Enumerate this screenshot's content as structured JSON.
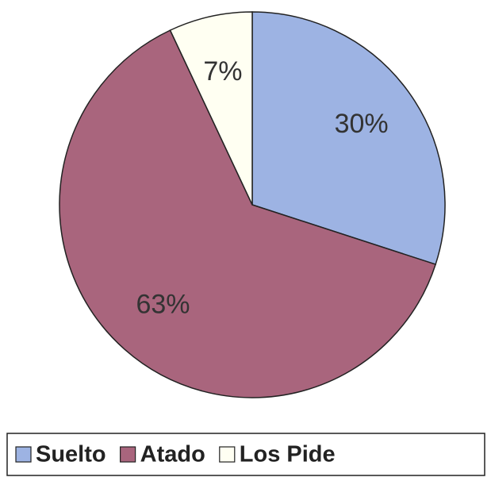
{
  "chart_data": {
    "type": "pie",
    "categories": [
      "Suelto",
      "Atado",
      "Los Pide"
    ],
    "values": [
      30,
      63,
      7
    ],
    "value_labels": [
      "30%",
      "63%",
      "7%"
    ],
    "colors": [
      "#9db3e3",
      "#a9657d",
      "#fffff2"
    ],
    "legend": "bottom"
  }
}
